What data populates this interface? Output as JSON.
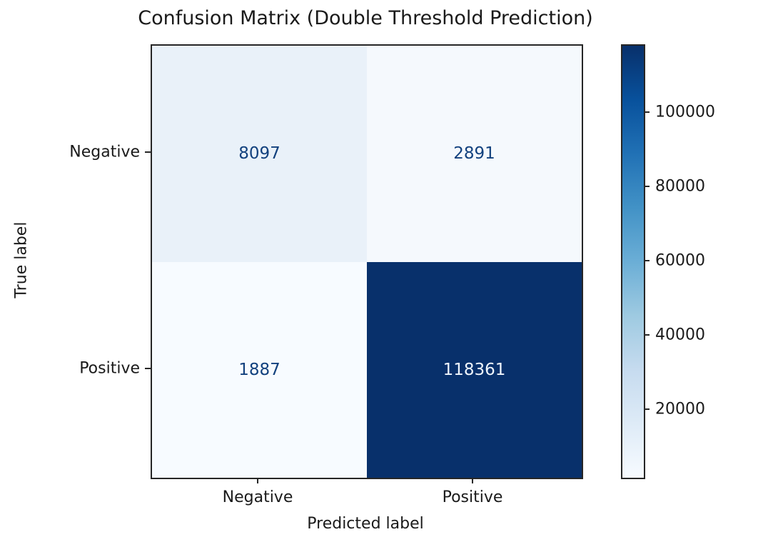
{
  "chart_data": {
    "type": "heatmap",
    "title": "Confusion Matrix (Double Threshold Prediction)",
    "xlabel": "Predicted label",
    "ylabel": "True label",
    "x_categories": [
      "Negative",
      "Positive"
    ],
    "y_categories": [
      "Negative",
      "Positive"
    ],
    "matrix": [
      [
        8097,
        2891
      ],
      [
        1887,
        118361
      ]
    ],
    "cells": [
      {
        "value": "8097",
        "row": "Negative",
        "col": "Negative",
        "bg": "#e9f1f9",
        "fg": "#12417e"
      },
      {
        "value": "2891",
        "row": "Negative",
        "col": "Positive",
        "bg": "#f5f9fd",
        "fg": "#12417e"
      },
      {
        "value": "1887",
        "row": "Positive",
        "col": "Negative",
        "bg": "#f7fbff",
        "fg": "#12417e"
      },
      {
        "value": "118361",
        "row": "Positive",
        "col": "Positive",
        "bg": "#08306b",
        "fg": "#eff5fc"
      }
    ],
    "colormap": "Blues",
    "vmin": 1887,
    "vmax": 118361,
    "colorbar": {
      "ticks": [
        "20000",
        "40000",
        "60000",
        "80000",
        "100000"
      ],
      "gradient_bottom_to_top": [
        "#f7fbff",
        "#deebf7",
        "#c6dbef",
        "#9ecae1",
        "#6baed6",
        "#4292c6",
        "#2171b5",
        "#08519c",
        "#08306b"
      ]
    },
    "layout": {
      "legend_position": "right-colorbar",
      "grid": "off",
      "background": "#ffffff",
      "spine_color": "#262626"
    }
  }
}
